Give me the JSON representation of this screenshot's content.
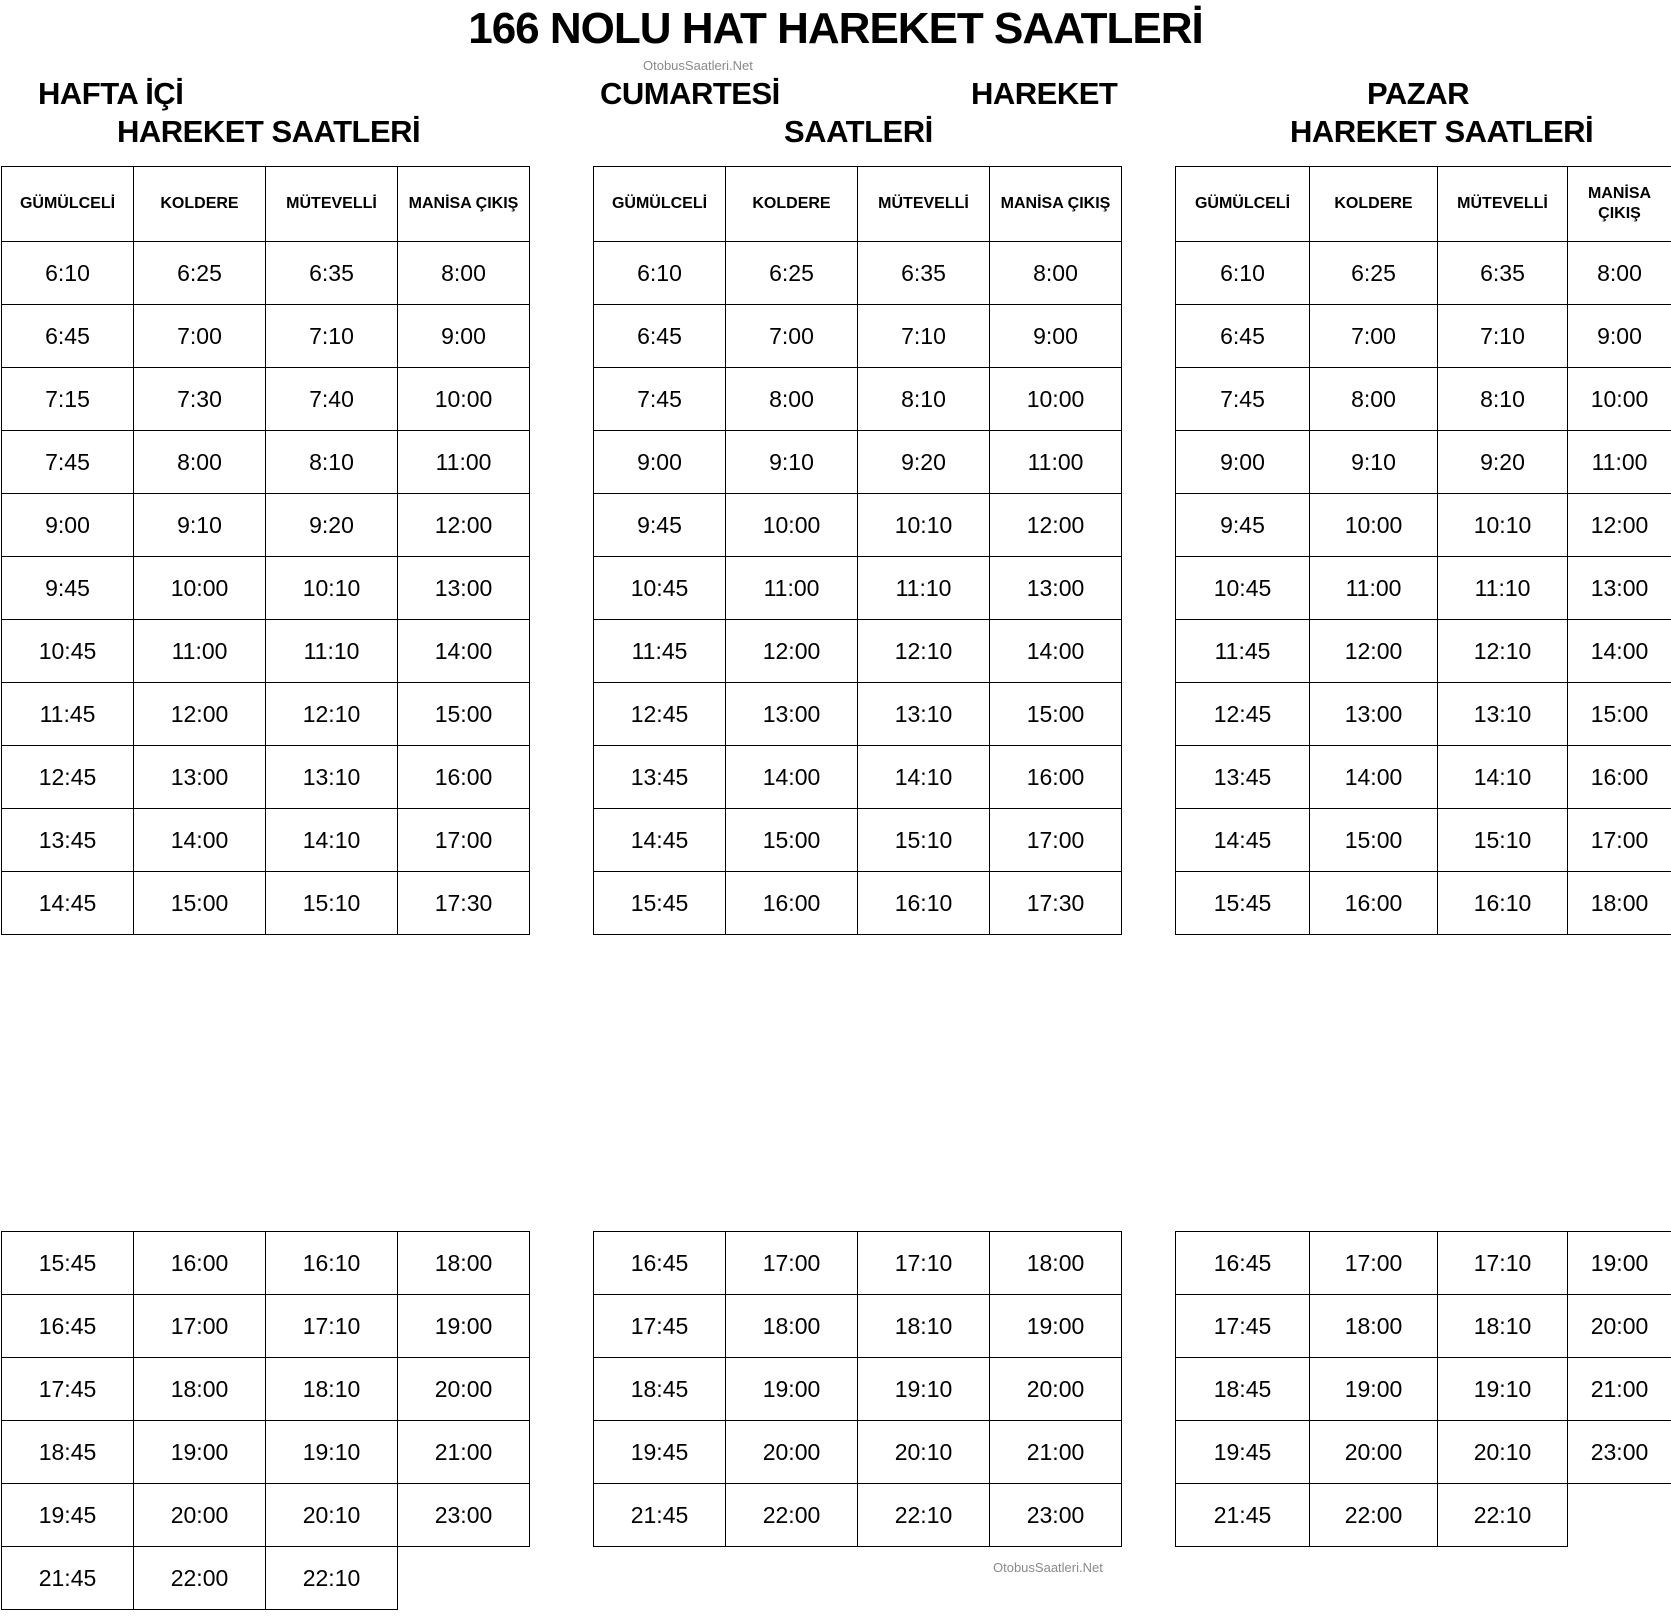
{
  "title": "166 NOLU HAT HAREKET SAATLERİ",
  "watermark": "OtobusSaatleri.Net",
  "sections": {
    "weekday": {
      "line1": "HAFTA İÇİ",
      "line2": "HAREKET SAATLERİ"
    },
    "saturday": {
      "line1a": "CUMARTESİ",
      "line1b": "HAREKET",
      "line2": "SAATLERİ"
    },
    "sunday": {
      "line1": "PAZAR",
      "line2": "HAREKET SAATLERİ"
    }
  },
  "columns": [
    "GÜMÜLCELİ",
    "KOLDERE",
    "MÜTEVELLİ",
    "MANİSA ÇIKIŞ"
  ],
  "tables": [
    {
      "top": [
        [
          "6:10",
          "6:25",
          "6:35",
          "8:00"
        ],
        [
          "6:45",
          "7:00",
          "7:10",
          "9:00"
        ],
        [
          "7:15",
          "7:30",
          "7:40",
          "10:00"
        ],
        [
          "7:45",
          "8:00",
          "8:10",
          "11:00"
        ],
        [
          "9:00",
          "9:10",
          "9:20",
          "12:00"
        ],
        [
          "9:45",
          "10:00",
          "10:10",
          "13:00"
        ],
        [
          "10:45",
          "11:00",
          "11:10",
          "14:00"
        ],
        [
          "11:45",
          "12:00",
          "12:10",
          "15:00"
        ],
        [
          "12:45",
          "13:00",
          "13:10",
          "16:00"
        ],
        [
          "13:45",
          "14:00",
          "14:10",
          "17:00"
        ],
        [
          "14:45",
          "15:00",
          "15:10",
          "17:30"
        ]
      ],
      "bottom": [
        [
          "15:45",
          "16:00",
          "16:10",
          "18:00"
        ],
        [
          "16:45",
          "17:00",
          "17:10",
          "19:00"
        ],
        [
          "17:45",
          "18:00",
          "18:10",
          "20:00"
        ],
        [
          "18:45",
          "19:00",
          "19:10",
          "21:00"
        ],
        [
          "19:45",
          "20:00",
          "20:10",
          "23:00"
        ],
        [
          "21:45",
          "22:00",
          "22:10",
          ""
        ]
      ]
    },
    {
      "top": [
        [
          "6:10",
          "6:25",
          "6:35",
          "8:00"
        ],
        [
          "6:45",
          "7:00",
          "7:10",
          "9:00"
        ],
        [
          "7:45",
          "8:00",
          "8:10",
          "10:00"
        ],
        [
          "9:00",
          "9:10",
          "9:20",
          "11:00"
        ],
        [
          "9:45",
          "10:00",
          "10:10",
          "12:00"
        ],
        [
          "10:45",
          "11:00",
          "11:10",
          "13:00"
        ],
        [
          "11:45",
          "12:00",
          "12:10",
          "14:00"
        ],
        [
          "12:45",
          "13:00",
          "13:10",
          "15:00"
        ],
        [
          "13:45",
          "14:00",
          "14:10",
          "16:00"
        ],
        [
          "14:45",
          "15:00",
          "15:10",
          "17:00"
        ],
        [
          "15:45",
          "16:00",
          "16:10",
          "17:30"
        ]
      ],
      "bottom": [
        [
          "16:45",
          "17:00",
          "17:10",
          "18:00"
        ],
        [
          "17:45",
          "18:00",
          "18:10",
          "19:00"
        ],
        [
          "18:45",
          "19:00",
          "19:10",
          "20:00"
        ],
        [
          "19:45",
          "20:00",
          "20:10",
          "21:00"
        ],
        [
          "21:45",
          "22:00",
          "22:10",
          "23:00"
        ]
      ]
    },
    {
      "top": [
        [
          "6:10",
          "6:25",
          "6:35",
          "8:00"
        ],
        [
          "6:45",
          "7:00",
          "7:10",
          "9:00"
        ],
        [
          "7:45",
          "8:00",
          "8:10",
          "10:00"
        ],
        [
          "9:00",
          "9:10",
          "9:20",
          "11:00"
        ],
        [
          "9:45",
          "10:00",
          "10:10",
          "12:00"
        ],
        [
          "10:45",
          "11:00",
          "11:10",
          "13:00"
        ],
        [
          "11:45",
          "12:00",
          "12:10",
          "14:00"
        ],
        [
          "12:45",
          "13:00",
          "13:10",
          "15:00"
        ],
        [
          "13:45",
          "14:00",
          "14:10",
          "16:00"
        ],
        [
          "14:45",
          "15:00",
          "15:10",
          "17:00"
        ],
        [
          "15:45",
          "16:00",
          "16:10",
          "18:00"
        ]
      ],
      "bottom": [
        [
          "16:45",
          "17:00",
          "17:10",
          "19:00"
        ],
        [
          "17:45",
          "18:00",
          "18:10",
          "20:00"
        ],
        [
          "18:45",
          "19:00",
          "19:10",
          "21:00"
        ],
        [
          "19:45",
          "20:00",
          "20:10",
          "23:00"
        ],
        [
          "21:45",
          "22:00",
          "22:10",
          ""
        ]
      ]
    }
  ]
}
